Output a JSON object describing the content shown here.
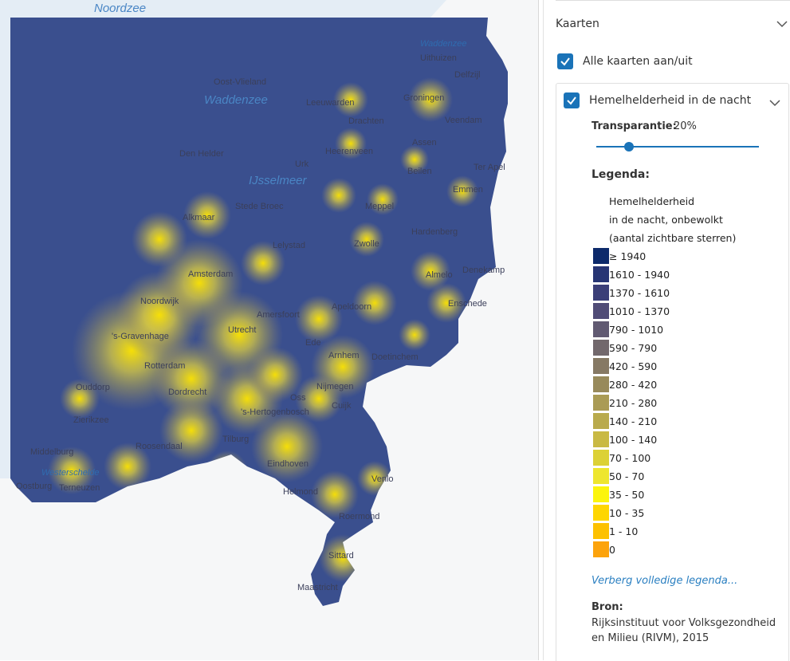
{
  "map": {
    "labels": [
      "Noordzee",
      "Waddenzee",
      "Uithuizen",
      "Delfzijl",
      "Oost-Vlieland",
      "Waddenzee",
      "Leeuwarden",
      "Groningen",
      "Drachten",
      "Veendam",
      "Assen",
      "Den Helder",
      "Heerenveen",
      "Urk",
      "Beilen",
      "Ter Apel",
      "IJsselmeer",
      "Emmen",
      "Alkmaar",
      "Stede Broec",
      "Meppel",
      "Hardenberg",
      "Lelystad",
      "Zwolle",
      "Amsterdam",
      "Almelo",
      "Denekamp",
      "Noordwijk",
      "Enschede",
      "Amersfoort",
      "Apeldoorn",
      "'s-Gravenhage",
      "Utrecht",
      "Ede",
      "Arnhem",
      "Doetinchem",
      "Rotterdam",
      "Ouddorp",
      "Dordrecht",
      "Nijmegen",
      "Oss",
      "Cuijk",
      "'s-Hertogenbosch",
      "Zierikzee",
      "Tilburg",
      "Roosendaal",
      "Middelburg",
      "Eindhoven",
      "Westerschelde",
      "Venlo",
      "Oostburg",
      "Terneuzen",
      "Helmond",
      "Roermond",
      "Sittard",
      "Maastricht"
    ]
  },
  "panel": {
    "title": "Kaarten",
    "toggle_all": "Alle kaarten aan/uit",
    "layer": {
      "name": "Hemelhelderheid in de nacht",
      "transparency": {
        "label": "Transparantie:",
        "value": 20,
        "value_label": "20%"
      },
      "legend_label": "Legenda:",
      "legend_title": [
        "Hemelhelderheid",
        "in de nacht, onbewolkt",
        "(aantal zichtbare sterren)"
      ],
      "legend": [
        {
          "label": "≥ 1940",
          "color": "#0d2a6b"
        },
        {
          "label": "1610 - 1940",
          "color": "#273574"
        },
        {
          "label": "1370 - 1610",
          "color": "#3b3f78"
        },
        {
          "label": "1010 - 1370",
          "color": "#504c77"
        },
        {
          "label": "790 - 1010",
          "color": "#615a72"
        },
        {
          "label": "590 - 790",
          "color": "#72686c"
        },
        {
          "label": "420 - 590",
          "color": "#867964"
        },
        {
          "label": "280 - 420",
          "color": "#988a5b"
        },
        {
          "label": "210 - 280",
          "color": "#aa9b55"
        },
        {
          "label": "140 - 210",
          "color": "#b9aa4c"
        },
        {
          "label": "100 - 140",
          "color": "#c9b943"
        },
        {
          "label": "70 - 100",
          "color": "#dcd136"
        },
        {
          "label": "50 - 70",
          "color": "#eee62e"
        },
        {
          "label": "35 - 50",
          "color": "#fcf50c"
        },
        {
          "label": "10 - 35",
          "color": "#fed600"
        },
        {
          "label": "1 - 10",
          "color": "#fdc100"
        },
        {
          "label": "0",
          "color": "#fca30c"
        }
      ],
      "hide_legend": "Verberg volledige legenda...",
      "source_label": "Bron:",
      "source": [
        "Rijksinstituut voor Volksgezondheid",
        "en Milieu (RIVM), 2015"
      ]
    }
  }
}
